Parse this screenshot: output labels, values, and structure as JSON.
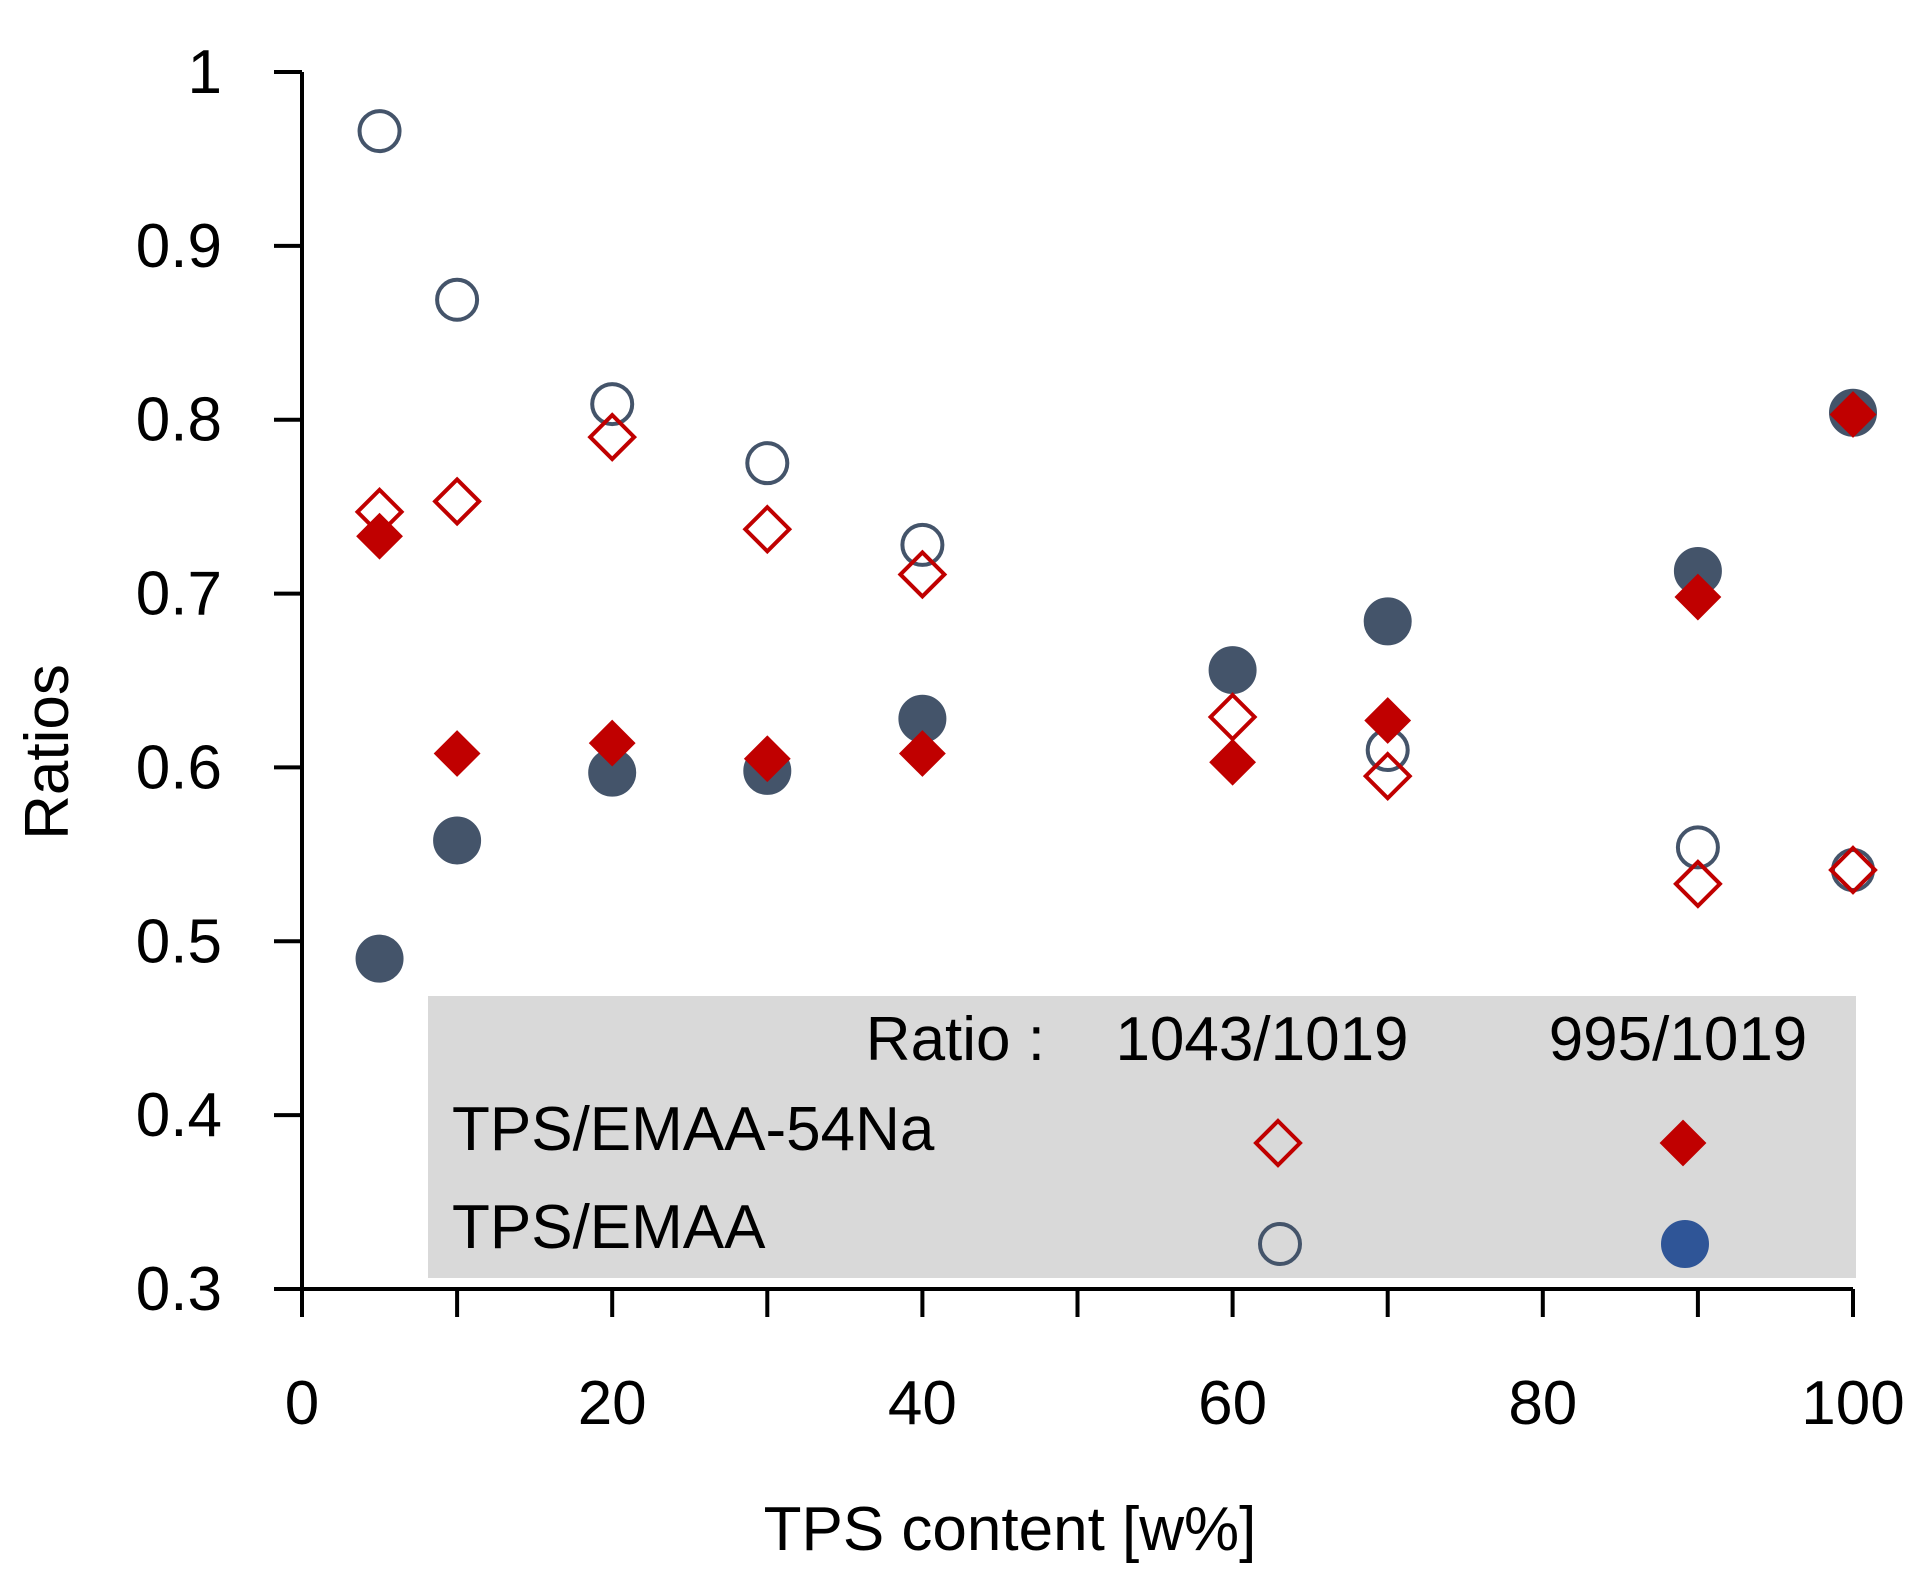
{
  "chart_data": {
    "type": "scatter",
    "title": "",
    "xlabel": "TPS content [w%]",
    "ylabel": "Ratios",
    "xlim": [
      0,
      100
    ],
    "ylim": [
      0.3,
      1.0
    ],
    "x_ticks": [
      "0",
      "20",
      "40",
      "60",
      "80",
      "100"
    ],
    "y_ticks": [
      "0.3",
      "0.4",
      "0.5",
      "0.6",
      "0.7",
      "0.8",
      "0.9",
      "1"
    ],
    "grid": false,
    "legend": {
      "placement": "bottom-right",
      "header_label": "Ratio :",
      "col1_label": "1043/1019",
      "col2_label": "995/1019",
      "rows": [
        "TPS/EMAA-54Na",
        "TPS/EMAA"
      ]
    },
    "series": [
      {
        "name": "TPS/EMAA-54Na 1043/1019",
        "marker": "diamond-open",
        "color": "#c00000",
        "x": [
          5,
          10,
          20,
          30,
          40,
          60,
          70,
          90,
          100
        ],
        "y": [
          0.747,
          0.753,
          0.79,
          0.737,
          0.711,
          0.629,
          0.595,
          0.533,
          0.541
        ]
      },
      {
        "name": "TPS/EMAA-54Na 995/1019",
        "marker": "diamond-filled",
        "color": "#c00000",
        "x": [
          5,
          10,
          20,
          30,
          40,
          60,
          70,
          90,
          100
        ],
        "y": [
          0.733,
          0.608,
          0.614,
          0.605,
          0.608,
          0.603,
          0.627,
          0.698,
          0.803
        ]
      },
      {
        "name": "TPS/EMAA 1043/1019",
        "marker": "circle-open",
        "color": "#44546a",
        "x": [
          5,
          10,
          20,
          30,
          40,
          70,
          90,
          100
        ],
        "y": [
          0.966,
          0.869,
          0.809,
          0.775,
          0.728,
          0.61,
          0.554,
          0.541
        ]
      },
      {
        "name": "TPS/EMAA 995/1019",
        "marker": "circle-filled",
        "color": "#44546a",
        "x": [
          5,
          10,
          20,
          30,
          40,
          60,
          70,
          90,
          100
        ],
        "y": [
          0.49,
          0.558,
          0.597,
          0.598,
          0.628,
          0.656,
          0.684,
          0.713,
          0.804
        ]
      }
    ]
  }
}
